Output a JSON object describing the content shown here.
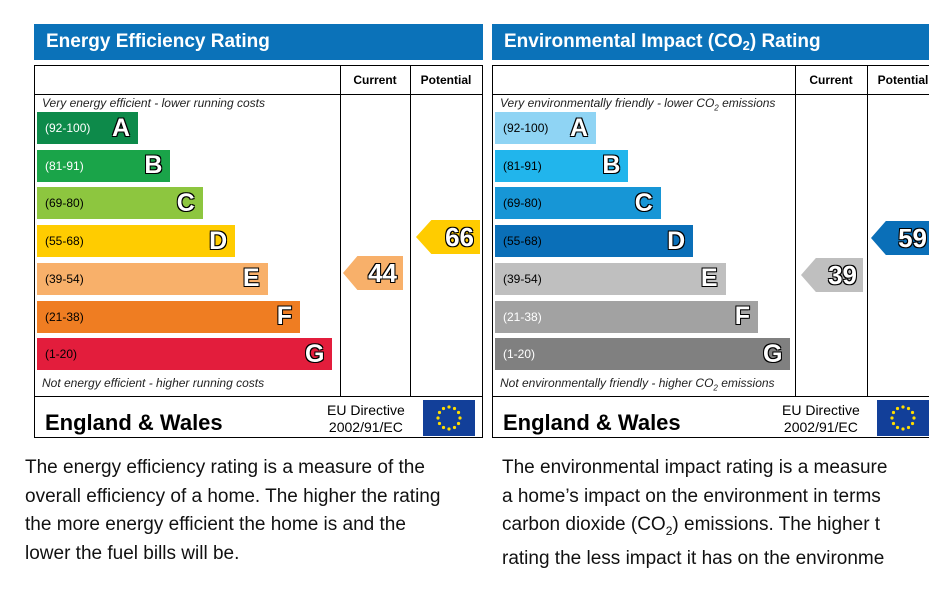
{
  "left": {
    "title": "Energy Efficiency Rating",
    "col_current": "Current",
    "col_potential": "Potential",
    "top_note": "Very energy efficient - lower running costs",
    "bottom_note": "Not energy efficient - higher running costs",
    "bands": [
      {
        "range": "(92-100)",
        "letter": "A",
        "color": "#0d8a4a",
        "text_color": "#ffffff"
      },
      {
        "range": "(81-91)",
        "letter": "B",
        "color": "#1aa449",
        "text_color": "#ffffff"
      },
      {
        "range": "(69-80)",
        "letter": "C",
        "color": "#8dc63f",
        "text_color": "#000000"
      },
      {
        "range": "(55-68)",
        "letter": "D",
        "color": "#ffcc00",
        "text_color": "#000000"
      },
      {
        "range": "(39-54)",
        "letter": "E",
        "color": "#f8b06a",
        "text_color": "#000000"
      },
      {
        "range": "(21-38)",
        "letter": "F",
        "color": "#ef7d22",
        "text_color": "#000000"
      },
      {
        "range": "(1-20)",
        "letter": "G",
        "color": "#e31d3c",
        "text_color": "#000000"
      }
    ],
    "current": {
      "value": "44",
      "band": "E",
      "color": "#f8b06a"
    },
    "potential": {
      "value": "66",
      "band": "D",
      "color": "#ffcc00"
    },
    "region": "England & Wales",
    "directive_line1": "EU Directive",
    "directive_line2": "2002/91/EC",
    "description": [
      "The energy efficiency rating is a measure of the",
      "overall efficiency of a home. The higher the rating",
      "the more energy efficient the home is and the",
      "lower the fuel bills will be."
    ]
  },
  "right": {
    "title_pre": "Environmental Impact (CO",
    "title_sub": "2",
    "title_post": ") Rating",
    "col_current": "Current",
    "col_potential": "Potential",
    "top_note_pre": "Very environmentally friendly - lower CO",
    "top_note_sub": "2",
    "top_note_post": " emissions",
    "bottom_note_pre": "Not environmentally friendly - higher CO",
    "bottom_note_sub": "2",
    "bottom_note_post": " emissions",
    "bands": [
      {
        "range": "(92-100)",
        "letter": "A",
        "color": "#8fd4f4",
        "text_color": "#000000"
      },
      {
        "range": "(81-91)",
        "letter": "B",
        "color": "#21b5ec",
        "text_color": "#000000"
      },
      {
        "range": "(69-80)",
        "letter": "C",
        "color": "#1796d6",
        "text_color": "#000000"
      },
      {
        "range": "(55-68)",
        "letter": "D",
        "color": "#0a6fb8",
        "text_color": "#000000"
      },
      {
        "range": "(39-54)",
        "letter": "E",
        "color": "#bfbfbf",
        "text_color": "#000000"
      },
      {
        "range": "(21-38)",
        "letter": "F",
        "color": "#a2a2a2",
        "text_color": "#ffffff"
      },
      {
        "range": "(1-20)",
        "letter": "G",
        "color": "#808080",
        "text_color": "#ffffff"
      }
    ],
    "current": {
      "value": "39",
      "band": "E",
      "color": "#bfbfbf"
    },
    "potential": {
      "value": "59",
      "band": "D",
      "color": "#0a6fb8"
    },
    "region": "England & Wales",
    "directive_line1": "EU Directive",
    "directive_line2": "2002/91/EC",
    "description_line1": "The environmental impact rating is a measure",
    "description_line2": "a home’s impact on the environment in terms",
    "description_line3_pre": "carbon dioxide (CO",
    "description_line3_sub": "2",
    "description_line3_post": ") emissions. The higher t",
    "description_line4": "rating the less impact it has on the environme"
  }
}
